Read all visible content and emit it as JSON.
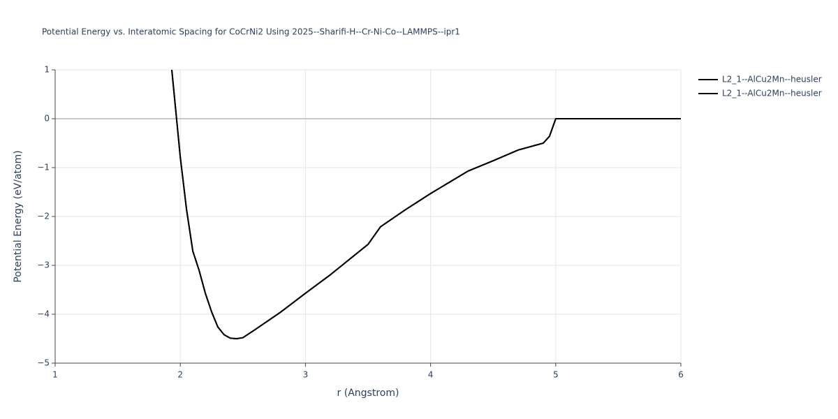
{
  "chart_data": {
    "type": "line",
    "title": "Potential Energy vs. Interatomic Spacing for CoCrNi2 Using 2025--Sharifi-H--Cr-Ni-Co--LAMMPS--ipr1",
    "x_label": "r (Angstrom)",
    "y_label": "Potential Energy (eV/atom)",
    "x": [
      1.932,
      2.0,
      2.05,
      2.1,
      2.15,
      2.2,
      2.25,
      2.3,
      2.35,
      2.4,
      2.45,
      2.5,
      2.6,
      2.8,
      3.0,
      3.2,
      3.5,
      3.6,
      3.8,
      4.0,
      4.3,
      4.5,
      4.7,
      4.9,
      4.95,
      5.0,
      5.5,
      6.0
    ],
    "series": [
      {
        "name": "L2_1--AlCu2Mn--heusler",
        "color": "#000000",
        "values": [
          1.0,
          -0.79,
          -1.86,
          -2.71,
          -3.1,
          -3.57,
          -3.95,
          -4.26,
          -4.42,
          -4.49,
          -4.5,
          -4.48,
          -4.31,
          -3.96,
          -3.57,
          -3.19,
          -2.57,
          -2.21,
          -1.86,
          -1.53,
          -1.07,
          -0.86,
          -0.64,
          -0.5,
          -0.36,
          0,
          0,
          0
        ]
      },
      {
        "name": "L2_1--AlCu2Mn--heusler",
        "color": "#000000",
        "values": [
          1.0,
          -0.79,
          -1.86,
          -2.71,
          -3.1,
          -3.57,
          -3.95,
          -4.26,
          -4.42,
          -4.49,
          -4.5,
          -4.48,
          -4.31,
          -3.96,
          -3.57,
          -3.19,
          -2.57,
          -2.21,
          -1.86,
          -1.53,
          -1.07,
          -0.86,
          -0.64,
          -0.5,
          -0.36,
          0,
          0,
          0
        ]
      }
    ],
    "xlim": [
      1,
      6
    ],
    "ylim": [
      -5,
      1
    ],
    "xticks": [
      1,
      2,
      3,
      4,
      5,
      6
    ],
    "yticks": [
      1,
      0,
      {
        "value": -1,
        "label": "−1"
      },
      {
        "value": -2,
        "label": "−2"
      },
      {
        "value": -3,
        "label": "−3"
      },
      {
        "value": -4,
        "label": "−4"
      },
      {
        "value": -5,
        "label": "−5"
      }
    ],
    "grid": true,
    "legend": "top-right"
  }
}
